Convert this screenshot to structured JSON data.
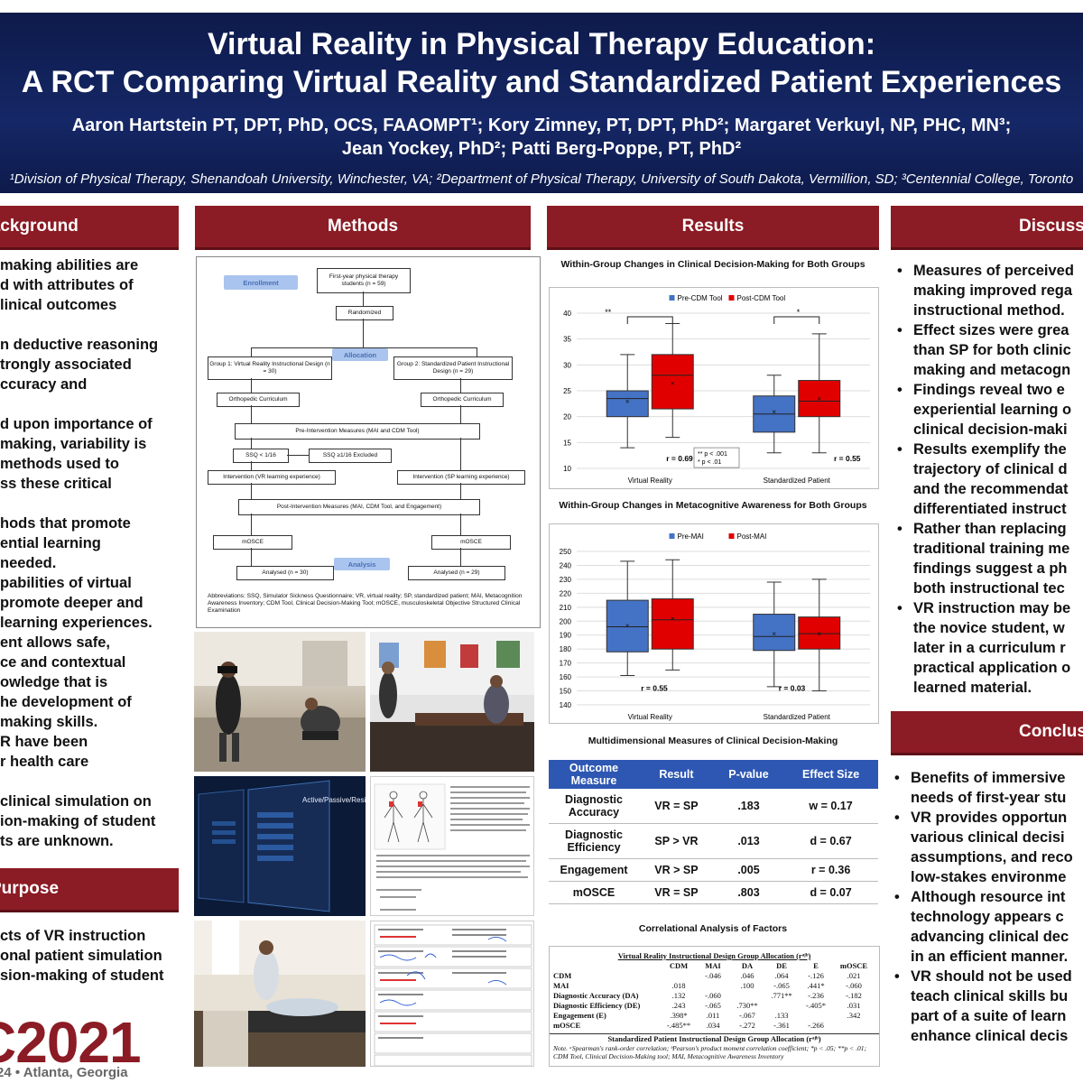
{
  "header": {
    "title_line1": "Virtual Reality in Physical Therapy Education:",
    "title_line2": "A RCT Comparing Virtual Reality and Standardized Patient Experiences",
    "authors_line1": "Aaron Hartstein PT, DPT, PhD, OCS, FAAOMPT¹; Kory Zimney, PT, DPT, PhD²; Margaret Verkuyl, NP, PHC, MN³;",
    "authors_line2": "Jean Yockey, PhD²; Patti Berg-Poppe, PT, PhD²",
    "affiliations": "¹Division of Physical Therapy, Shenandoah University, Winchester, VA; ²Department of Physical Therapy, University of South Dakota, Vermillion, SD; ³Centennial College, Toronto"
  },
  "sections": {
    "background": "Background",
    "methods": "Methods",
    "results": "Results",
    "discussion": "Discussion",
    "purpose": "Purpose",
    "conclusion": "Conclusion"
  },
  "background_lines": [
    "making abilities are",
    "d with attributes of",
    "linical outcomes",
    "",
    "n deductive reasoning",
    "trongly associated",
    "ccuracy and",
    "",
    "d upon importance of",
    "making, variability is",
    "methods used to",
    "ss these critical",
    "",
    "hods that promote",
    "ential learning",
    "needed.",
    "pabilities of virtual",
    "promote deeper and",
    "learning experiences.",
    "ent allows safe,",
    "ce and contextual",
    "owledge that is",
    "he development of",
    "making skills.",
    "R have been",
    "r health care",
    "",
    "clinical simulation on",
    "ion-making of student",
    "ts are unknown."
  ],
  "purpose_lines": [
    "cts of VR instruction",
    "onal patient simulation",
    "sion-making of student"
  ],
  "flowchart": {
    "enrollment": "Enrollment",
    "allocation": "Allocation",
    "analysis": "Analysis",
    "students": "First-year physical therapy students (n = 59)",
    "randomized": "Randomized",
    "group1": "Group 1: Virtual Reality Instructional Design (n = 30)",
    "group2": "Group 2: Standardized Patient Instructional Design (n = 29)",
    "ortho1": "Orthopedic Curriculum",
    "ortho2": "Orthopedic Curriculum",
    "pre": "Pre-Intervention Measures (MAI and CDM Tool)",
    "ssq_lt": "SSQ < 1/16",
    "ssq_ge": "SSQ ≥1/16 Excluded",
    "int_vr": "Intervention (VR learning experience)",
    "int_sp": "Intervention (SP learning experience)",
    "post": "Post-Intervention Measures (MAI, CDM Tool, and Engagement)",
    "mosce1": "mOSCE",
    "mosce2": "mOSCE",
    "an1": "Analysed (n = 30)",
    "an2": "Analysed (n = 29)",
    "abbrev": "Abbreviations: SSQ, Simulator Sickness Questionnaire; VR, virtual reality; SP, standardized patient; MAI, Metacognition Awareness Inventory; CDM Tool, Clinical Decision-Making Tool; mOSCE, musculoskeletal Objective Structured Clinical Examination"
  },
  "vr_screen_label": "Active/Passive/Resisted T",
  "results": {
    "chart1_title": "Within-Group Changes in Clinical Decision-Making for Both Groups",
    "chart2_title": "Within-Group Changes in Metacognitive Awareness for Both Groups",
    "table_title": "Multidimensional Measures of Clinical Decision-Making",
    "corr_title": "Correlational Analysis of Factors"
  },
  "chart_data": [
    {
      "type": "box",
      "title": "Within-Group Changes in Clinical Decision-Making for Both Groups",
      "categories": [
        "Virtual Reality",
        "Standardized Patient"
      ],
      "ylim": [
        10,
        40
      ],
      "yticks": [
        10,
        15,
        20,
        25,
        30,
        35,
        40
      ],
      "grid": true,
      "legend": "top",
      "series": [
        {
          "name": "Pre-CDM Tool",
          "color": "#4472c4",
          "boxes": [
            {
              "min": 14,
              "q1": 20,
              "median": 23.5,
              "q3": 25,
              "max": 32,
              "mean": 23
            },
            {
              "min": 13,
              "q1": 17,
              "median": 20.5,
              "q3": 24,
              "max": 28,
              "mean": 21
            }
          ]
        },
        {
          "name": "Post-CDM Tool",
          "color": "#e00000",
          "boxes": [
            {
              "min": 16,
              "q1": 21.5,
              "median": 28,
              "q3": 32,
              "max": 38,
              "mean": 26.5
            },
            {
              "min": 13,
              "q1": 20,
              "median": 23,
              "q3": 27,
              "max": 36,
              "mean": 23.5
            }
          ]
        }
      ],
      "annotations": {
        "sig1": "**",
        "sig2": "*",
        "r1": "r = 0.69",
        "r2": "r = 0.55",
        "note1": "** p < .001",
        "note2": "* p < .01"
      }
    },
    {
      "type": "box",
      "title": "Within-Group Changes in Metacognitive Awareness for Both Groups",
      "categories": [
        "Virtual Reality",
        "Standardized Patient"
      ],
      "ylim": [
        140,
        250
      ],
      "yticks": [
        140,
        150,
        160,
        170,
        180,
        190,
        200,
        210,
        220,
        230,
        240,
        250
      ],
      "grid": true,
      "legend": "top",
      "series": [
        {
          "name": "Pre-MAI",
          "color": "#4472c4",
          "boxes": [
            {
              "min": 161,
              "q1": 178,
              "median": 196,
              "q3": 215,
              "max": 243,
              "mean": 197
            },
            {
              "min": 153,
              "q1": 179,
              "median": 189,
              "q3": 205,
              "max": 228,
              "mean": 191
            }
          ]
        },
        {
          "name": "Post-MAI",
          "color": "#e00000",
          "boxes": [
            {
              "min": 165,
              "q1": 180,
              "median": 201,
              "q3": 216,
              "max": 244,
              "mean": 202
            },
            {
              "min": 150,
              "q1": 180,
              "median": 191,
              "q3": 203,
              "max": 230,
              "mean": 191
            }
          ]
        }
      ],
      "annotations": {
        "r1": "r = 0.55",
        "r2": "r = 0.03"
      }
    }
  ],
  "table": {
    "headers": [
      "Outcome Measure",
      "Result",
      "P-value",
      "Effect Size"
    ],
    "rows": [
      [
        "Diagnostic Accuracy",
        "VR = SP",
        ".183",
        "w = 0.17"
      ],
      [
        "Diagnostic Efficiency",
        "SP > VR",
        ".013",
        "d = 0.67"
      ],
      [
        "Engagement",
        "VR > SP",
        ".005",
        "r = 0.36"
      ],
      [
        "mOSCE",
        "VR = SP",
        ".803",
        "d = 0.07"
      ]
    ]
  },
  "corr": {
    "top_caption": "Virtual Reality Instructional Design Group Allocation (rᵃʲᵇ)",
    "bottom_caption": "Standardized Patient Instructional Design Group Allocation (rᵃʲᵇ)",
    "cols": [
      "CDM",
      "MAI",
      "DA",
      "DE",
      "E",
      "mOSCE"
    ],
    "rows": [
      [
        "CDM",
        "",
        "-.046",
        ".046",
        ".064",
        "-.126",
        ".021"
      ],
      [
        "MAI",
        ".018",
        "",
        ".100",
        "-.065",
        ".441*",
        "-.060"
      ],
      [
        "Diagnostic Accuracy (DA)",
        ".132",
        "-.060",
        "",
        ".771**",
        "-.236",
        "-.182"
      ],
      [
        "Diagnostic Efficiency (DE)",
        ".243",
        "-.065",
        ".730**",
        "",
        "-.405*",
        ".031"
      ],
      [
        "Engagement (E)",
        ".398*",
        ".011",
        "-.067",
        ".133",
        "",
        ".342"
      ],
      [
        "mOSCE",
        "-.485**",
        ".034",
        "-.272",
        "-.361",
        "-.266",
        ""
      ]
    ],
    "note": "Note. ᵃSpearman's rank-order correlation; ᵇPearson's product moment correlation coefficient; *p < .05; **p < .01; CDM Tool, Clinical Decision-Making tool; MAI, Metacognitive Awareness Inventory"
  },
  "discussion": [
    [
      "Measures of perceived",
      "making improved rega",
      "instructional method."
    ],
    [
      "Effect sizes were grea",
      "than SP for both clinic",
      "making and metacogn"
    ],
    [
      "Findings reveal two e",
      "experiential learning o",
      "clinical decision-maki"
    ],
    [
      "Results exemplify the",
      "trajectory of clinical d",
      "and the recommendat",
      "differentiated instruct"
    ],
    [
      "Rather than replacing",
      "traditional training me",
      "findings suggest a ph",
      "both instructional tec"
    ],
    [
      "VR instruction may be",
      "the novice student, w",
      "later in a curriculum r",
      "practical application o",
      "learned material."
    ]
  ],
  "conclusion": [
    [
      "Benefits of immersive",
      "needs of first-year stu"
    ],
    [
      "VR provides opportun",
      "various clinical decisi",
      "assumptions, and reco",
      "low-stakes environme"
    ],
    [
      "Although resource int",
      "technology appears c",
      "advancing clinical dec",
      "in an efficient manner."
    ],
    [
      "VR should not be used",
      "teach clinical skills bu",
      "part of a suite of learn",
      "enhance clinical decis"
    ]
  ],
  "logo": {
    "text": "C2021",
    "location": "24 • Atlanta, Georgia"
  },
  "colors": {
    "navy": "#152766",
    "maroon": "#8b1b24",
    "blue": "#4472c4",
    "red": "#e00000",
    "tablehead": "#2e57b3"
  }
}
